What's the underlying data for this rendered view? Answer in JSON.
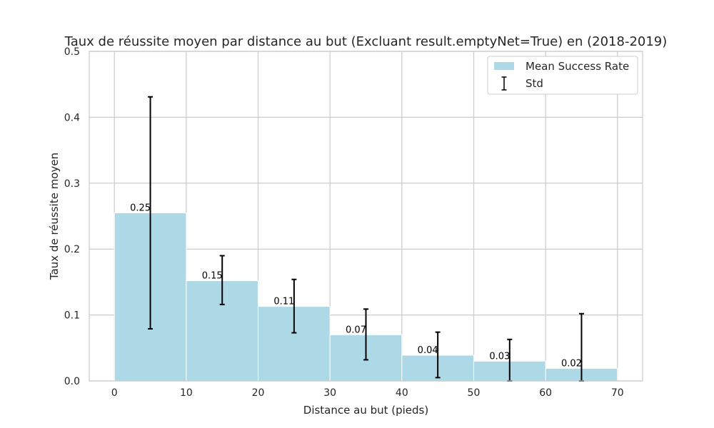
{
  "chart_data": {
    "type": "bar",
    "title": "Taux de réussite moyen par distance au but (Excluant result.emptyNet=True) en (2018-2019)",
    "xlabel": "Distance au but (pieds)",
    "ylabel": "Taux de réussite moyen",
    "xlim": [
      -3.5,
      73.5
    ],
    "ylim": [
      0,
      0.5
    ],
    "xticks": [
      0,
      10,
      20,
      30,
      40,
      50,
      60,
      70
    ],
    "yticks": [
      0.0,
      0.1,
      0.2,
      0.3,
      0.4,
      0.5
    ],
    "xtick_labels": [
      "0",
      "10",
      "20",
      "30",
      "40",
      "50",
      "60",
      "70"
    ],
    "ytick_labels": [
      "0.0",
      "0.1",
      "0.2",
      "0.3",
      "0.4",
      "0.5"
    ],
    "grid": true,
    "legend_position": "top-right",
    "bin_width": 10,
    "bins": [
      {
        "x_start": 0,
        "value": 0.255,
        "label": "0.25",
        "err_low": 0.079,
        "err_high": 0.431
      },
      {
        "x_start": 10,
        "value": 0.152,
        "label": "0.15",
        "err_low": 0.116,
        "err_high": 0.19
      },
      {
        "x_start": 20,
        "value": 0.113,
        "label": "0.11",
        "err_low": 0.073,
        "err_high": 0.154
      },
      {
        "x_start": 30,
        "value": 0.07,
        "label": "0.07",
        "err_low": 0.032,
        "err_high": 0.109
      },
      {
        "x_start": 40,
        "value": 0.039,
        "label": "0.04",
        "err_low": 0.005,
        "err_high": 0.074
      },
      {
        "x_start": 50,
        "value": 0.03,
        "label": "0.03",
        "err_low": 0.0,
        "err_high": 0.063
      },
      {
        "x_start": 60,
        "value": 0.019,
        "label": "0.02",
        "err_low": 0.0,
        "err_high": 0.102
      }
    ],
    "series": [
      {
        "name": "Mean Success Rate",
        "type": "bar"
      },
      {
        "name": "Std",
        "type": "errorbar"
      }
    ],
    "colors": {
      "bar": "#add8e6",
      "error": "#000000",
      "grid": "#cccccc",
      "axis": "#cccccc",
      "text": "#262626"
    }
  }
}
